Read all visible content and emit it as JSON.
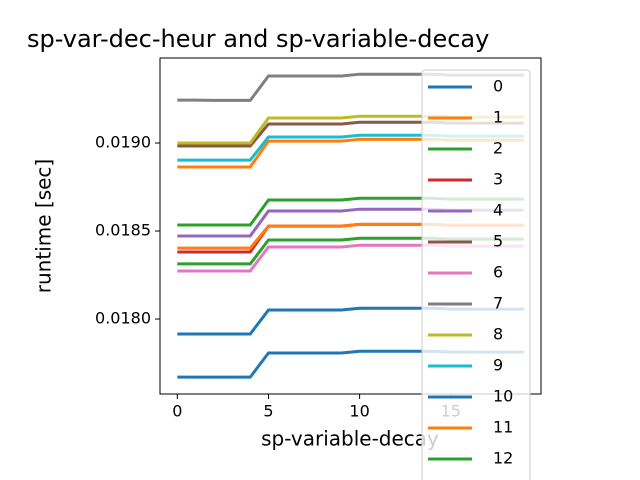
{
  "chart_data": {
    "type": "line",
    "title": "sp-var-dec-heur and sp-variable-decay",
    "x_label": "sp-variable-decay",
    "y_label": "runtime [sec]",
    "x": [
      0,
      1,
      2,
      3,
      4,
      5,
      6,
      7,
      8,
      9,
      10,
      11,
      12,
      13,
      14,
      15,
      16,
      17,
      18,
      19
    ],
    "xlim": [
      -0.95,
      19.95
    ],
    "xticks": [
      0,
      5,
      10,
      15
    ],
    "ylim": [
      0.017574,
      0.019483
    ],
    "yticks": [
      {
        "value": 0.018,
        "label": "0.0180"
      },
      {
        "value": 0.0185,
        "label": "0.0185"
      },
      {
        "value": 0.019,
        "label": "0.0190"
      }
    ],
    "series": [
      {
        "name": "0",
        "color": "#1f77b4",
        "values": [
          0.017915,
          0.017915,
          0.017915,
          0.017915,
          0.017915,
          0.018051,
          0.018051,
          0.018051,
          0.018051,
          0.018051,
          0.018061,
          0.018061,
          0.018061,
          0.018061,
          0.018061,
          0.018056,
          0.018056,
          0.018056,
          0.018056,
          0.018056
        ]
      },
      {
        "name": "1",
        "color": "#ff7f0e",
        "values": [
          0.018864,
          0.018864,
          0.018864,
          0.018864,
          0.018864,
          0.019011,
          0.019011,
          0.019011,
          0.019011,
          0.019011,
          0.019021,
          0.019021,
          0.019021,
          0.019021,
          0.019021,
          0.019016,
          0.019016,
          0.019016,
          0.019016,
          0.019016
        ]
      },
      {
        "name": "2",
        "color": "#2ca02c",
        "values": [
          0.018534,
          0.018534,
          0.018534,
          0.018534,
          0.018534,
          0.018676,
          0.018676,
          0.018676,
          0.018676,
          0.018676,
          0.018686,
          0.018686,
          0.018686,
          0.018686,
          0.018686,
          0.018681,
          0.018681,
          0.018681,
          0.018681,
          0.018681
        ]
      },
      {
        "name": "3",
        "color": "#d62728",
        "values": [
          0.018381,
          0.018381,
          0.018381,
          0.018381,
          0.018381,
          0.018528,
          0.018528,
          0.018528,
          0.018528,
          0.018528,
          0.018538,
          0.018538,
          0.018538,
          0.018538,
          0.018538,
          0.018533,
          0.018533,
          0.018533,
          0.018533,
          0.018533
        ]
      },
      {
        "name": "4",
        "color": "#9467bd",
        "values": [
          0.018472,
          0.018472,
          0.018472,
          0.018472,
          0.018472,
          0.018614,
          0.018614,
          0.018614,
          0.018614,
          0.018614,
          0.018624,
          0.018624,
          0.018624,
          0.018624,
          0.018624,
          0.018619,
          0.018619,
          0.018619,
          0.018619,
          0.018619
        ]
      },
      {
        "name": "5",
        "color": "#8c564b",
        "values": [
          0.018983,
          0.018983,
          0.018983,
          0.018983,
          0.018983,
          0.019108,
          0.019108,
          0.019108,
          0.019108,
          0.019108,
          0.019118,
          0.019118,
          0.019118,
          0.019118,
          0.019118,
          0.019113,
          0.019113,
          0.019113,
          0.019113,
          0.019113
        ]
      },
      {
        "name": "6",
        "color": "#e377c2",
        "values": [
          0.018273,
          0.018273,
          0.018273,
          0.018273,
          0.018273,
          0.018409,
          0.018409,
          0.018409,
          0.018409,
          0.018409,
          0.018419,
          0.018419,
          0.018419,
          0.018419,
          0.018419,
          0.018414,
          0.018414,
          0.018414,
          0.018414,
          0.018414
        ]
      },
      {
        "name": "7",
        "color": "#7f7f7f",
        "values": [
          0.019244,
          0.019244,
          0.019242,
          0.019242,
          0.019242,
          0.019381,
          0.019381,
          0.019381,
          0.019381,
          0.019381,
          0.019391,
          0.019391,
          0.019391,
          0.019391,
          0.019391,
          0.019386,
          0.019386,
          0.019386,
          0.019386,
          0.019386
        ]
      },
      {
        "name": "8",
        "color": "#bcbd22",
        "values": [
          0.019,
          0.019,
          0.019,
          0.019,
          0.019,
          0.019142,
          0.019142,
          0.019142,
          0.019142,
          0.019142,
          0.019152,
          0.019152,
          0.019152,
          0.019152,
          0.019152,
          0.019147,
          0.019147,
          0.019147,
          0.019147,
          0.019147
        ]
      },
      {
        "name": "9",
        "color": "#17becf",
        "values": [
          0.018903,
          0.018903,
          0.018903,
          0.018903,
          0.018903,
          0.019034,
          0.019034,
          0.019034,
          0.019034,
          0.019034,
          0.019044,
          0.019044,
          0.019044,
          0.019044,
          0.019044,
          0.019039,
          0.019039,
          0.019039,
          0.019039,
          0.019039
        ]
      },
      {
        "name": "10",
        "color": "#1f77b4",
        "values": [
          0.01767,
          0.01767,
          0.01767,
          0.01767,
          0.01767,
          0.017807,
          0.017807,
          0.017807,
          0.017807,
          0.017807,
          0.017817,
          0.017817,
          0.017817,
          0.017817,
          0.017817,
          0.017812,
          0.017812,
          0.017812,
          0.017812,
          0.017812
        ]
      },
      {
        "name": "11",
        "color": "#ff7f0e",
        "values": [
          0.018403,
          0.018403,
          0.018403,
          0.018403,
          0.018403,
          0.018528,
          0.018528,
          0.018528,
          0.018528,
          0.018528,
          0.018538,
          0.018538,
          0.018538,
          0.018538,
          0.018538,
          0.018533,
          0.018533,
          0.018533,
          0.018533,
          0.018533
        ]
      },
      {
        "name": "12",
        "color": "#2ca02c",
        "values": [
          0.018313,
          0.018313,
          0.018313,
          0.018313,
          0.018313,
          0.018449,
          0.018449,
          0.018449,
          0.018449,
          0.018449,
          0.018459,
          0.018459,
          0.018459,
          0.018459,
          0.018459,
          0.018454,
          0.018454,
          0.018454,
          0.018454,
          0.018454
        ]
      }
    ]
  }
}
